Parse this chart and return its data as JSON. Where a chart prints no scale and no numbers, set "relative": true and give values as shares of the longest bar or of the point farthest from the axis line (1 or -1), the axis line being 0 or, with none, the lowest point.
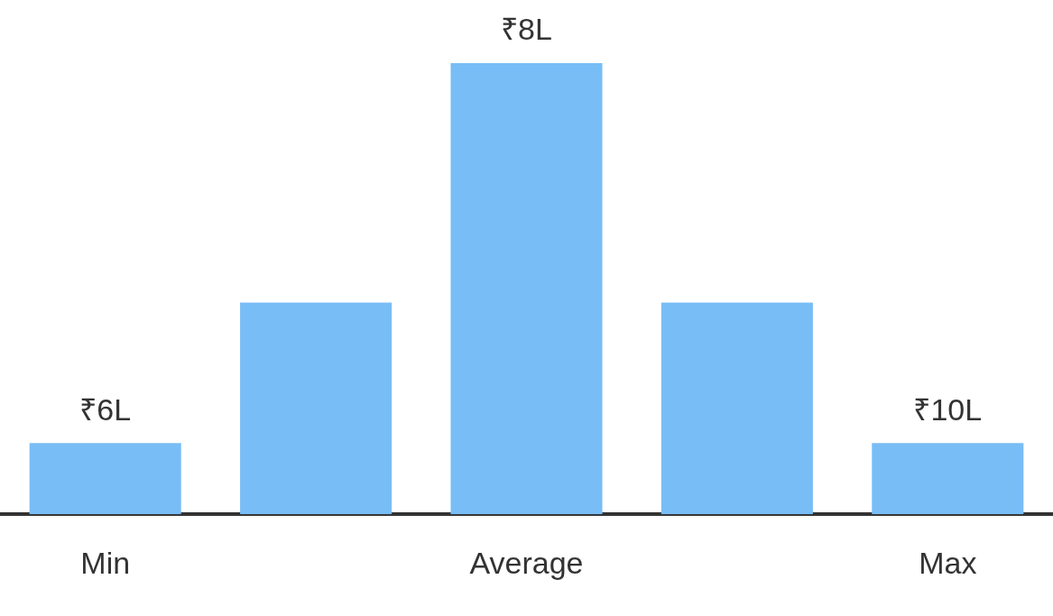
{
  "chart_data": {
    "type": "bar",
    "relative": true,
    "categories": [
      "Min",
      null,
      "Average",
      null,
      "Max"
    ],
    "values": [
      0.158,
      0.469,
      1,
      0.469,
      0.158
    ],
    "annotations": [
      {
        "text": "₹6L",
        "x": "Min",
        "y": 0.158
      },
      {
        "text": "₹8L",
        "x": "Average",
        "y": 1
      },
      {
        "text": "₹10L",
        "x": "Max",
        "y": 0.158
      }
    ],
    "color": "#78bdf6",
    "grid": false,
    "legend": false
  }
}
